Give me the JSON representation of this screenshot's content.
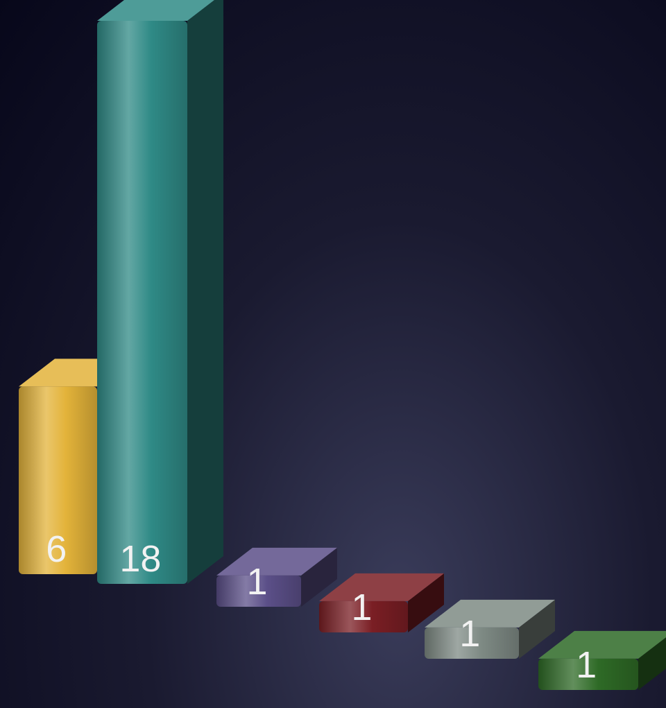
{
  "chart_data": {
    "type": "bar",
    "title": "",
    "xlabel": "",
    "ylabel": "",
    "ylim": [
      0,
      18
    ],
    "grid": false,
    "legend": "none",
    "bars": [
      {
        "value": 6,
        "label": "6",
        "color": "#e3b33a"
      },
      {
        "value": 18,
        "label": "18",
        "color": "#2f8a86"
      },
      {
        "value": 1,
        "label": "1",
        "color": "#5b4f88"
      },
      {
        "value": 1,
        "label": "1",
        "color": "#7a1e24"
      },
      {
        "value": 1,
        "label": "1",
        "color": "#7e8a84"
      },
      {
        "value": 1,
        "label": "1",
        "color": "#2e6a26"
      }
    ]
  }
}
